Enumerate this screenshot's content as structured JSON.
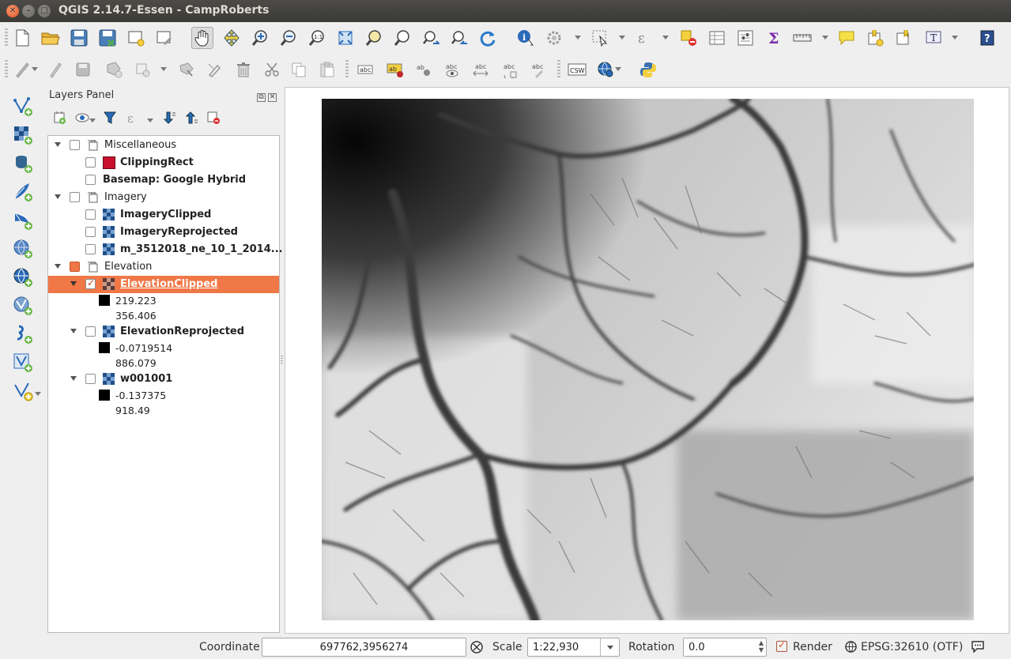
{
  "window": {
    "title": "QGIS 2.14.7-Essen - CampRoberts"
  },
  "layers_panel": {
    "title": "Layers Panel",
    "tree": [
      {
        "type": "group",
        "label": "Miscellaneous"
      },
      {
        "type": "layer",
        "label": "ClippingRect",
        "swatch": "#c8102e"
      },
      {
        "type": "layer",
        "label": "Basemap: Google Hybrid"
      },
      {
        "type": "group",
        "label": "Imagery"
      },
      {
        "type": "layer",
        "label": "ImageryClipped"
      },
      {
        "type": "layer",
        "label": "ImageryReprojected"
      },
      {
        "type": "layer",
        "label": "m_3512018_ne_10_1_2014..."
      },
      {
        "type": "group",
        "label": "Elevation"
      },
      {
        "type": "layer",
        "label": "ElevationClipped",
        "min": "219.223",
        "max": "356.406"
      },
      {
        "type": "layer",
        "label": "ElevationReprojected",
        "min": "-0.0719514",
        "max": "886.079"
      },
      {
        "type": "layer",
        "label": "w001001",
        "min": "-0.137375",
        "max": "918.49"
      }
    ]
  },
  "statusbar": {
    "coordinate_label": "Coordinate",
    "coordinate_value": "697762,3956274",
    "scale_label": "Scale",
    "scale_value": "1:22,930",
    "rotation_label": "Rotation",
    "rotation_value": "0.0",
    "render_label": "Render",
    "crs_label": "EPSG:32610 (OTF)"
  },
  "colors": {
    "selection": "#f07746",
    "titlebar": "#3b3a37",
    "accent_close": "#e0542a"
  }
}
